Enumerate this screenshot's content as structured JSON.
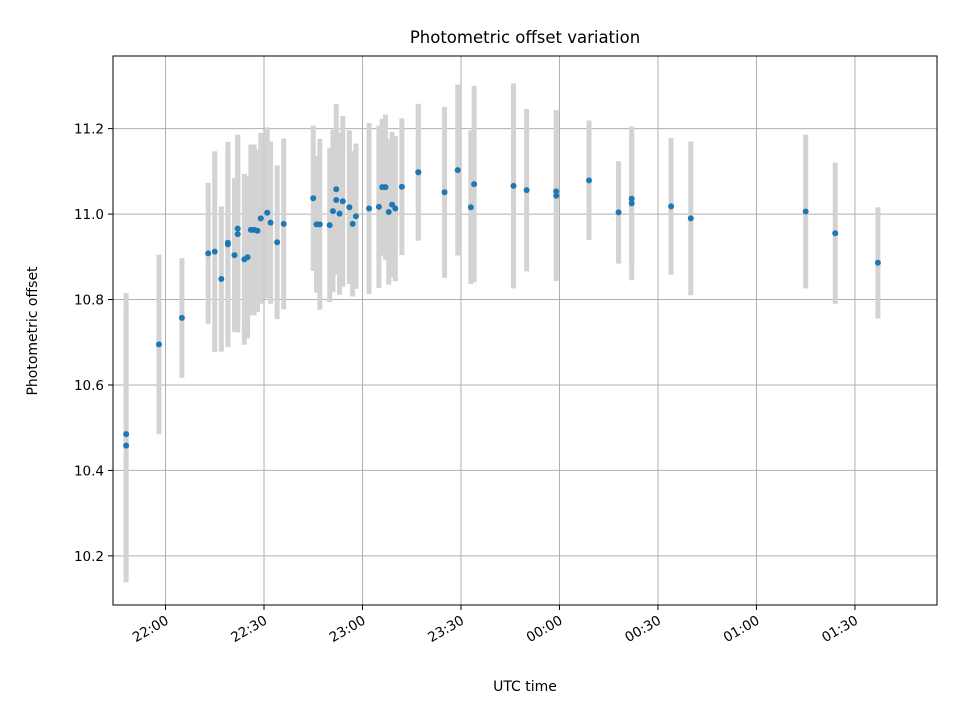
{
  "chart_data": {
    "type": "scatter",
    "title": "Photometric offset variation",
    "xlabel": "UTC time",
    "ylabel": "Photometric offset",
    "x_tick_labels": [
      "22:00",
      "22:30",
      "23:00",
      "23:30",
      "00:00",
      "00:30",
      "01:00",
      "01:30"
    ],
    "y_tick_labels": [
      "10.2",
      "10.4",
      "10.6",
      "10.8",
      "11.0",
      "11.2"
    ],
    "x_ticks_time": [
      "22:00",
      "22:30",
      "23:00",
      "23:30",
      "00:00",
      "00:30",
      "01:00",
      "01:30"
    ],
    "xlim": [
      "21:44",
      "01:55"
    ],
    "ylim": [
      10.085,
      11.37
    ],
    "grid": true,
    "colors": {
      "marker": "#1f77b4",
      "errorbar": "#d3d3d3",
      "grid": "#b0b0b0"
    },
    "series": [
      {
        "x": [
          "21:48",
          "21:48",
          "21:58",
          "22:05",
          "22:13",
          "22:15",
          "22:17",
          "22:19",
          "22:19",
          "22:21",
          "22:22",
          "22:22",
          "22:24",
          "22:25",
          "22:26",
          "22:27",
          "22:28",
          "22:29",
          "22:31",
          "22:32",
          "22:34",
          "22:36",
          "22:45",
          "22:46",
          "22:47",
          "22:50",
          "22:51",
          "22:52",
          "22:52",
          "22:53",
          "22:54",
          "22:56",
          "22:57",
          "22:58",
          "23:02",
          "23:05",
          "23:06",
          "23:07",
          "23:08",
          "23:09",
          "23:10",
          "23:12",
          "23:17",
          "23:17",
          "23:25",
          "23:29",
          "23:33",
          "23:34",
          "23:46",
          "23:50",
          "23:59",
          "23:59",
          "00:09",
          "00:18",
          "00:22",
          "00:22",
          "00:34",
          "00:40",
          "01:15",
          "01:24",
          "01:37"
        ],
        "y": [
          10.485,
          10.458,
          10.695,
          10.757,
          10.908,
          10.912,
          10.848,
          10.929,
          10.933,
          10.904,
          10.966,
          10.953,
          10.894,
          10.899,
          10.963,
          10.963,
          10.961,
          10.99,
          11.003,
          10.98,
          10.934,
          10.977,
          11.037,
          10.976,
          10.976,
          10.974,
          11.007,
          11.058,
          11.033,
          11.001,
          11.03,
          11.016,
          10.977,
          10.995,
          11.013,
          11.017,
          11.063,
          11.063,
          11.005,
          11.022,
          11.013,
          11.064,
          11.098,
          11.098,
          11.051,
          11.103,
          11.016,
          11.07,
          11.066,
          11.056,
          11.053,
          11.043,
          11.079,
          11.004,
          11.036,
          11.025,
          11.018,
          10.99,
          11.006,
          10.955,
          10.886
        ],
        "yerr": [
          0.33,
          0.32,
          0.21,
          0.14,
          0.165,
          0.235,
          0.17,
          0.24,
          0.22,
          0.18,
          0.22,
          0.23,
          0.2,
          0.19,
          0.2,
          0.2,
          0.19,
          0.2,
          0.2,
          0.19,
          0.18,
          0.2,
          0.17,
          0.16,
          0.2,
          0.18,
          0.19,
          0.2,
          0.17,
          0.19,
          0.2,
          0.18,
          0.17,
          0.17,
          0.2,
          0.19,
          0.16,
          0.17,
          0.17,
          0.17,
          0.17,
          0.16,
          0.16,
          0.16,
          0.2,
          0.2,
          0.18,
          0.23,
          0.24,
          0.19,
          0.19,
          0.2,
          0.14,
          0.12,
          0.15,
          0.18,
          0.16,
          0.18,
          0.18,
          0.165,
          0.13
        ]
      }
    ]
  }
}
